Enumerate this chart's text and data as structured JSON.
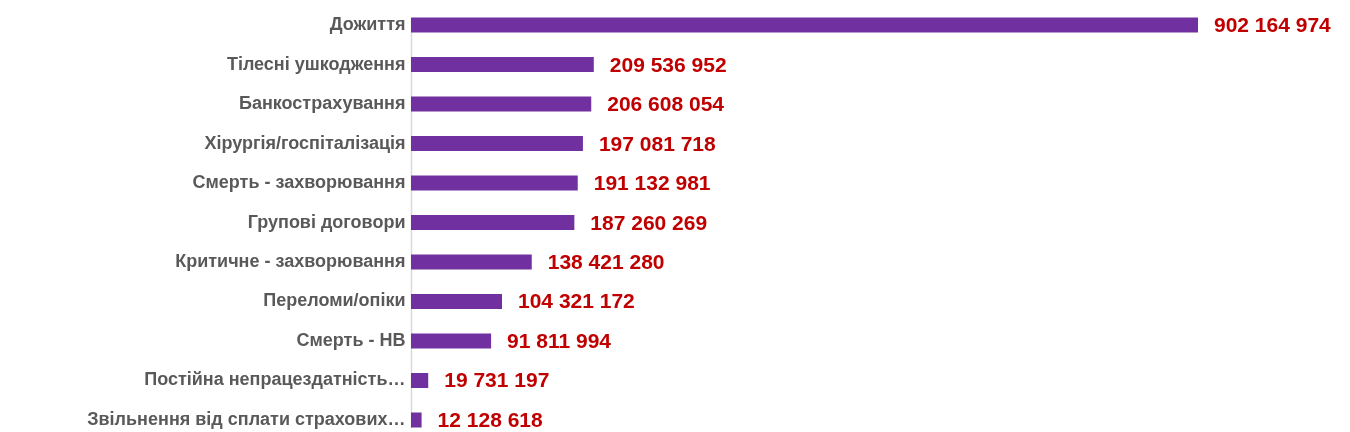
{
  "chart_data": {
    "type": "bar",
    "orientation": "horizontal",
    "categories": [
      "Дожиття",
      "Тілесні ушкодження",
      "Банкострахування",
      "Хірургія/госпіталізація",
      "Смерть - захворювання",
      "Групові договори",
      "Критичне - захворювання",
      "Переломи/опіки",
      "Смерть - НВ",
      "Постійна непрацездатність…",
      "Звільнення від сплати страхових…"
    ],
    "values": [
      902164974,
      209536952,
      206608054,
      197081718,
      191132981,
      187260269,
      138421280,
      104321172,
      91811994,
      19731197,
      12128618
    ],
    "color": "#7030a0",
    "data_labels": true
  }
}
